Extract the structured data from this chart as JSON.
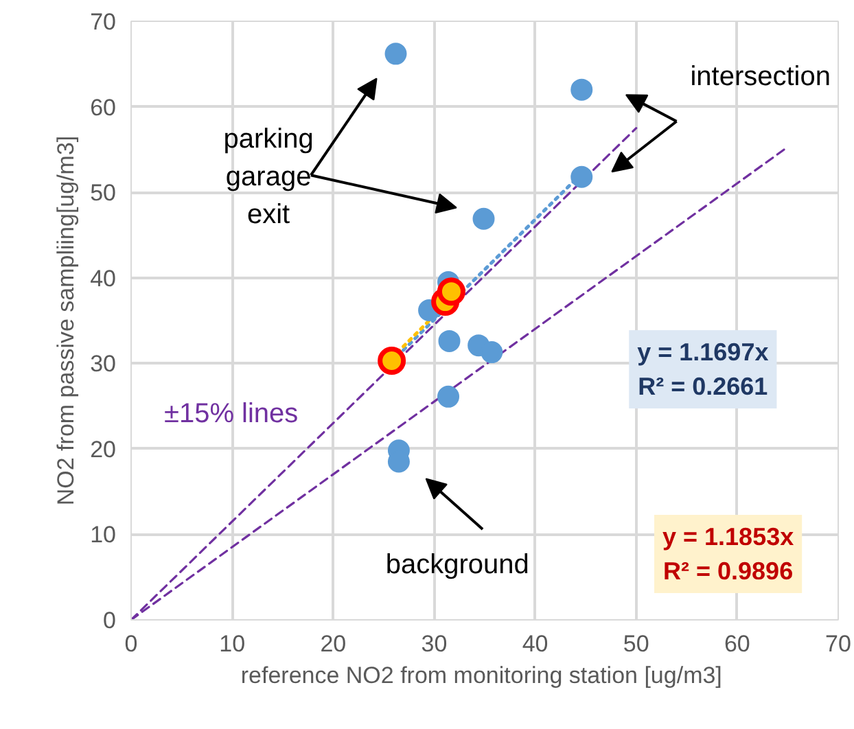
{
  "chart_data": {
    "type": "scatter",
    "xlabel": "reference  NO2 from monitoring station [ug/m3]",
    "ylabel": "NO2 from passive sampliing[ug/m3]",
    "xlim": [
      0,
      70
    ],
    "ylim": [
      0,
      70
    ],
    "xticks": [
      0,
      10,
      20,
      30,
      40,
      50,
      60,
      70
    ],
    "yticks": [
      0,
      10,
      20,
      30,
      40,
      50,
      60,
      70
    ],
    "grid": true,
    "series": [
      {
        "type": "line",
        "color": "#7030a0",
        "line_style": "dashed",
        "marker": "none",
        "x": [
          0,
          50
        ],
        "values": [
          0,
          57.5
        ]
      },
      {
        "type": "line",
        "color": "#7030a0",
        "line_style": "dashed",
        "marker": "none",
        "x": [
          0,
          65
        ],
        "values": [
          0,
          55.3
        ]
      },
      {
        "type": "line",
        "color": "#5b9bd5",
        "line_style": "dotted",
        "marker": "none",
        "x": [
          25.8,
          44.6
        ],
        "values": [
          30.2,
          52.2
        ]
      },
      {
        "type": "line",
        "color": "#ffc000",
        "line_style": "dotted",
        "marker": "none",
        "x": [
          25.8,
          31.7
        ],
        "values": [
          30.6,
          37.6
        ]
      },
      {
        "color": "#5b9bd5",
        "marker": "circle",
        "x": [
          26.2,
          44.6,
          44.6,
          34.9,
          31.4,
          29.5,
          31.5,
          34.4,
          35.7,
          31.4,
          26.5,
          26.5
        ],
        "values": [
          66.2,
          62.0,
          51.8,
          46.9,
          39.5,
          36.2,
          32.6,
          32.1,
          31.3,
          26.1,
          19.8,
          18.5
        ]
      },
      {
        "color": "#ffc000",
        "marker": "circle",
        "x": [
          25.8,
          31.1,
          31.7
        ],
        "values": [
          30.3,
          37.2,
          38.4
        ]
      }
    ],
    "annotations": [
      "intersection",
      "parking garage exit",
      "background",
      "±15% lines",
      "y = 1.1697x\nR² = 0.2661",
      "y = 1.1853x\nR² = 0.9896"
    ]
  }
}
